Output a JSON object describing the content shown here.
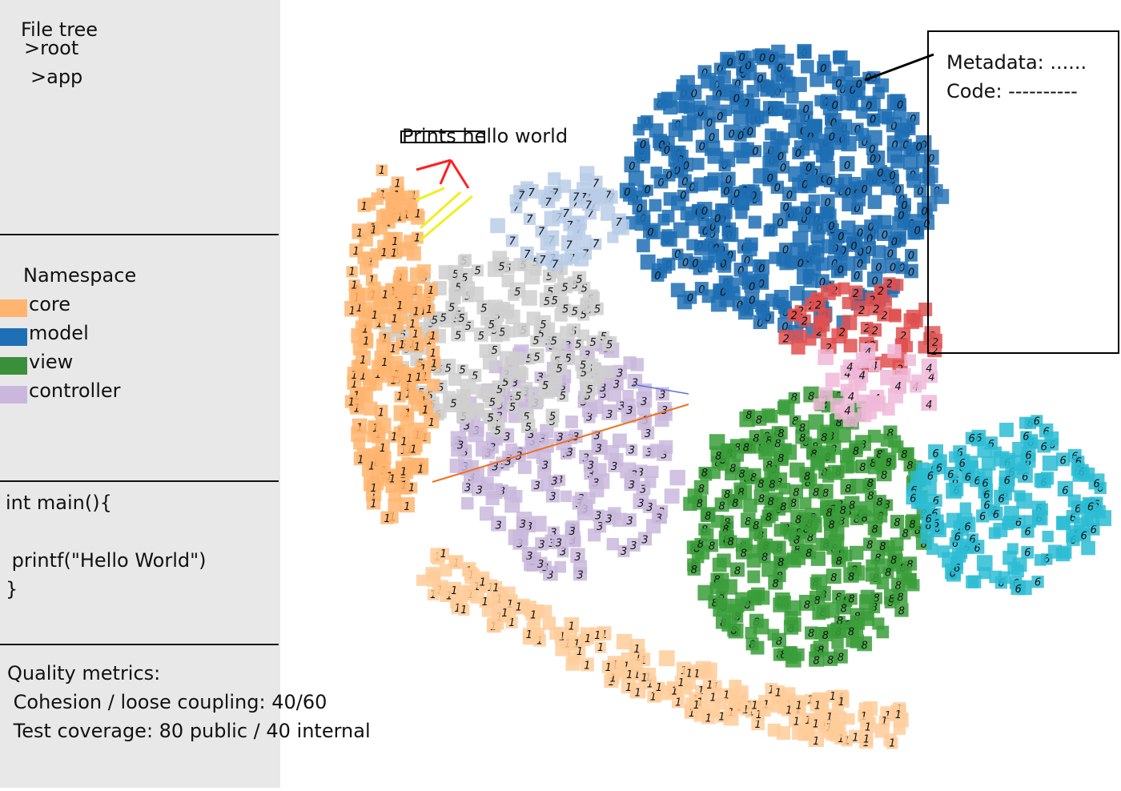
{
  "sidebar": {
    "file_tree": {
      "title": "File tree",
      "items": [
        ">root",
        ">app"
      ]
    },
    "namespace": {
      "title": "Namespace",
      "items": [
        {
          "label": "core",
          "color": "#ffb570"
        },
        {
          "label": "model",
          "color": "#1f6fb4"
        },
        {
          "label": "view",
          "color": "#3a8f3a"
        },
        {
          "label": "controller",
          "color": "#c9b8dc"
        }
      ]
    },
    "code": {
      "lines": [
        "int main(){",
        "",
        " printf(\"Hello World\")",
        "}"
      ]
    },
    "metrics": {
      "title": "Quality metrics:",
      "lines": [
        " Cohesion / loose coupling: 40/60",
        " Test coverage: 80 public / 40 internal"
      ]
    }
  },
  "canvas": {
    "callout": "Prints hello world",
    "metadata_lines": [
      "Metadata: ......",
      "Code: ----------"
    ],
    "cluster_digits": {
      "core": "1",
      "model": "0",
      "view": "8",
      "controller": "3",
      "gray": "5",
      "cyan": "6",
      "red": "2",
      "peach": "1",
      "lightblue": "7",
      "pink": "4"
    },
    "colors": {
      "core": "#ffb570",
      "peach": "#ffcc9a",
      "model": "#1f6fb4",
      "view": "#3a9e3a",
      "controller": "#c9b8dc",
      "gray": "#cfcfcf",
      "cyan": "#2bbcd4",
      "red": "#e05050",
      "lightblue": "#b9cde8",
      "pink": "#f0b8d8"
    }
  }
}
